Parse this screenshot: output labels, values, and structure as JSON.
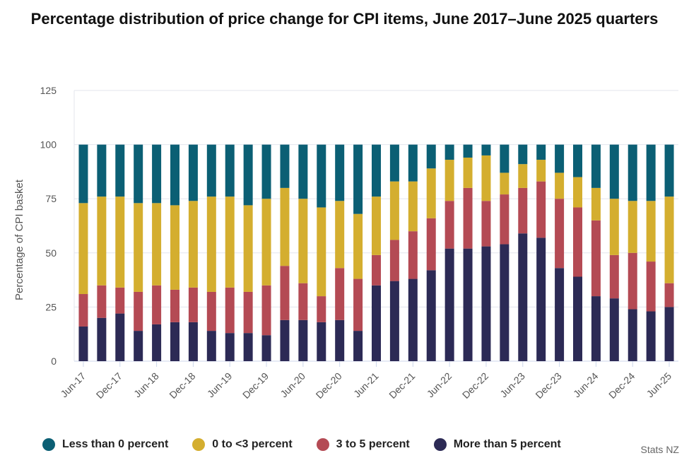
{
  "chart_data": {
    "type": "stacked_bar",
    "title": "Percentage distribution of price change for CPI items, June 2017–June 2025 quarters",
    "y_label": "Percentage of CPI basket",
    "source": "Stats NZ",
    "categories": [
      "Jun-17",
      null,
      "Dec-17",
      null,
      "Jun-18",
      null,
      "Dec-18",
      null,
      "Jun-19",
      null,
      "Dec-19",
      null,
      "Jun-20",
      null,
      "Dec-20",
      null,
      "Jun-21",
      null,
      "Dec-21",
      null,
      "Jun-22",
      null,
      "Dec-22",
      null,
      "Jun-23",
      null,
      "Dec-23",
      null,
      "Jun-24",
      null,
      "Dec-24",
      null,
      "Jun-25"
    ],
    "series": [
      {
        "name": "Less than 0 percent",
        "color": "#0b5f74",
        "values": [
          27,
          24,
          24,
          27,
          27,
          28,
          26,
          24,
          24,
          28,
          25,
          20,
          25,
          29,
          26,
          32,
          24,
          17,
          17,
          11,
          7,
          6,
          5,
          13,
          9,
          7,
          13,
          15,
          20,
          25,
          26,
          26,
          24
        ]
      },
      {
        "name": "0 to <3 percent",
        "color": "#d4ae2f",
        "values": [
          42,
          41,
          42,
          41,
          38,
          39,
          40,
          44,
          42,
          40,
          40,
          36,
          39,
          41,
          31,
          30,
          27,
          27,
          23,
          23,
          19,
          14,
          21,
          10,
          11,
          10,
          12,
          14,
          15,
          26,
          24,
          28,
          40
        ]
      },
      {
        "name": "3 to 5 percent",
        "color": "#b44a54",
        "values": [
          15,
          15,
          12,
          18,
          18,
          15,
          16,
          18,
          21,
          19,
          23,
          25,
          17,
          12,
          24,
          24,
          14,
          19,
          22,
          24,
          22,
          28,
          21,
          23,
          21,
          26,
          32,
          32,
          35,
          20,
          26,
          23,
          11
        ]
      },
      {
        "name": "More than 5 percent",
        "color": "#2c2a55",
        "values": [
          16,
          20,
          22,
          14,
          17,
          18,
          18,
          14,
          13,
          13,
          12,
          19,
          19,
          18,
          19,
          14,
          35,
          37,
          38,
          42,
          52,
          52,
          53,
          54,
          59,
          57,
          43,
          39,
          30,
          29,
          24,
          23,
          25
        ]
      }
    ],
    "ylim": [
      0,
      125
    ],
    "yticks": [
      0,
      25,
      50,
      75,
      100,
      125
    ],
    "grid": true,
    "legend": "bottom"
  }
}
